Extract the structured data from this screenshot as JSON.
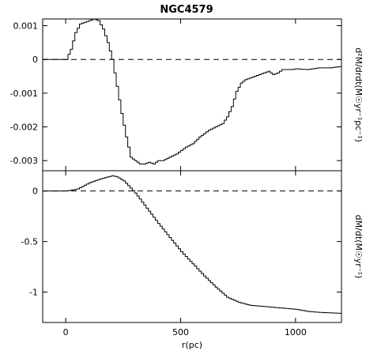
{
  "chart_data": {
    "type": "line",
    "title": "NGC4579",
    "xlabel": "r(pc)",
    "xlim": [
      -100,
      1200
    ],
    "x_ticks": [
      0,
      500,
      1000
    ],
    "x_tick_labels": [
      "0",
      "500",
      "1000"
    ],
    "panels": [
      {
        "ylabel": "d²M/drdt(M☉yr⁻¹pc⁻¹)",
        "ylim": [
          -0.0033,
          0.0012
        ],
        "y_ticks": [
          0.001,
          0,
          -0.001,
          -0.002,
          -0.003
        ],
        "y_tick_labels": [
          "0.001",
          "0",
          "-0.001",
          "-0.002",
          "-0.003"
        ],
        "reference_line": 0,
        "series": [
          {
            "x": [
              -100,
              0,
              20,
              40,
              60,
              80,
              100,
              120,
              140,
              160,
              180,
              200,
              220,
              240,
              260,
              280,
              300,
              320,
              340,
              360,
              380,
              400,
              420,
              450,
              480,
              500,
              520,
              550,
              580,
              600,
              620,
              650,
              680,
              700,
              720,
              740,
              760,
              780,
              800,
              820,
              840,
              860,
              880,
              900,
              920,
              940,
              960,
              980,
              1000,
              1050,
              1100,
              1150,
              1200
            ],
            "y": [
              0,
              0,
              0.0003,
              0.0008,
              0.00105,
              0.0011,
              0.00115,
              0.0012,
              0.00115,
              0.0009,
              0.0005,
              0.0,
              -0.0008,
              -0.0016,
              -0.0023,
              -0.0029,
              -0.003,
              -0.0031,
              -0.0031,
              -0.00305,
              -0.0031,
              -0.003,
              -0.003,
              -0.0029,
              -0.0028,
              -0.0027,
              -0.0026,
              -0.0025,
              -0.0023,
              -0.0022,
              -0.0021,
              -0.002,
              -0.0019,
              -0.0017,
              -0.0014,
              -0.00095,
              -0.0007,
              -0.0006,
              -0.00055,
              -0.0005,
              -0.00045,
              -0.0004,
              -0.00035,
              -0.00045,
              -0.0004,
              -0.0003,
              -0.0003,
              -0.0003,
              -0.00028,
              -0.0003,
              -0.00025,
              -0.00025,
              -0.0002
            ]
          }
        ]
      },
      {
        "ylabel": "dM/dt(M☉yr⁻¹)",
        "ylim": [
          -1.3,
          0.2
        ],
        "y_ticks": [
          0,
          -0.5,
          -1
        ],
        "y_tick_labels": [
          "0",
          "-0.5",
          "-1"
        ],
        "reference_line": 0,
        "series": [
          {
            "x": [
              -100,
              0,
              50,
              100,
              150,
              200,
              220,
              250,
              300,
              350,
              400,
              450,
              500,
              550,
              600,
              650,
              700,
              750,
              800,
              850,
              900,
              950,
              1000,
              1050,
              1100,
              1150,
              1200
            ],
            "y": [
              0,
              0,
              0.02,
              0.08,
              0.12,
              0.15,
              0.14,
              0.1,
              -0.02,
              -0.17,
              -0.32,
              -0.46,
              -0.6,
              -0.72,
              -0.84,
              -0.95,
              -1.05,
              -1.1,
              -1.13,
              -1.14,
              -1.15,
              -1.16,
              -1.17,
              -1.19,
              -1.2,
              -1.205,
              -1.21
            ]
          }
        ]
      }
    ]
  }
}
